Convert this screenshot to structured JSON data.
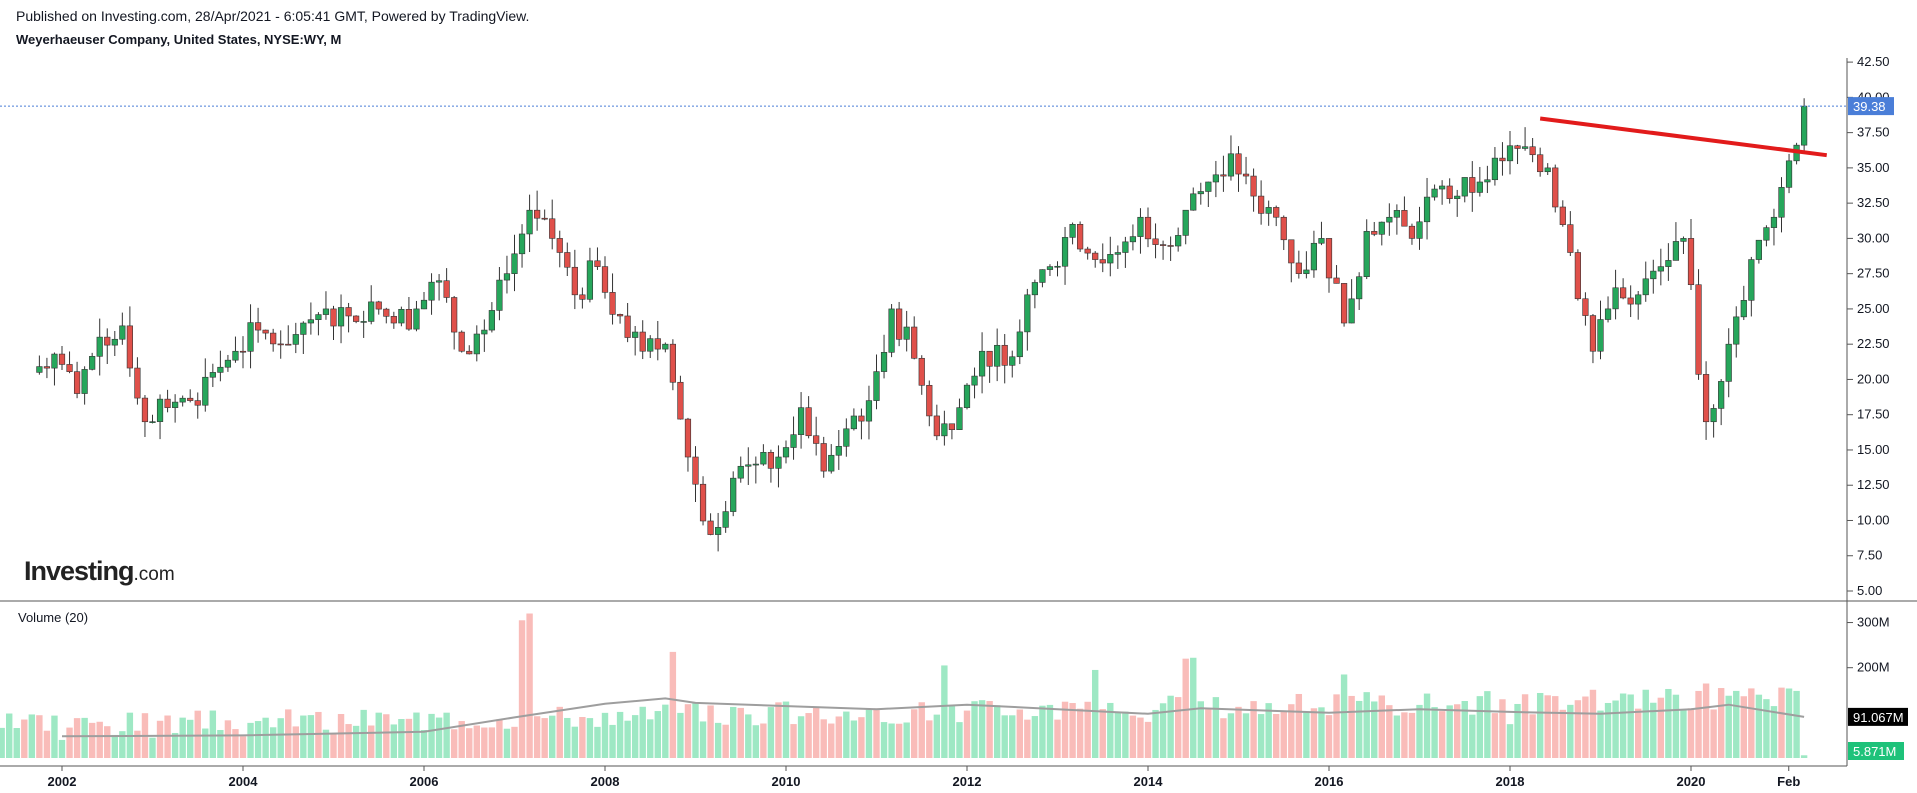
{
  "header": {
    "published": "Published on Investing.com, 28/Apr/2021 - 6:05:41 GMT, Powered by TradingView.",
    "symbol": "Weyerhaeuser Company, United States, NYSE:WY, M"
  },
  "logo": {
    "main": "Investing",
    "suffix": ".com"
  },
  "volume_panel": {
    "title": "Volume (20)"
  },
  "colors": {
    "up": "#26a65b",
    "down": "#e0504a",
    "vol_up": "#9ee8c4",
    "vol_down": "#f9bcb9",
    "ma": "#9e9e9e",
    "trendline": "#e21b1b",
    "price_tag": "#4a7ed8"
  },
  "chart_data": [
    {
      "type": "candlestick",
      "interval": "monthly",
      "y_axis_ticks": [
        "5.00",
        "7.50",
        "10.00",
        "12.50",
        "15.00",
        "17.50",
        "20.00",
        "22.50",
        "25.00",
        "27.50",
        "30.00",
        "32.50",
        "35.00",
        "37.50",
        "40.00",
        "42.50"
      ],
      "ylim": [
        5,
        43.5
      ],
      "x_tick_labels": [
        "2002",
        "2004",
        "2006",
        "2008",
        "2010",
        "2012",
        "2014",
        "2016",
        "2018",
        "2020",
        "Feb"
      ],
      "last_price": "39.38",
      "series": [
        {
          "x": "2001-09",
          "c": 20.5
        },
        {
          "x": "2001-12",
          "c": 21.8
        },
        {
          "x": "2002-03",
          "c": 19.0
        },
        {
          "x": "2002-06",
          "c": 23.0
        },
        {
          "x": "2002-09",
          "c": 23.8
        },
        {
          "x": "2002-12",
          "c": 17.0
        },
        {
          "x": "2003-03",
          "c": 18.0
        },
        {
          "x": "2003-06",
          "c": 18.5
        },
        {
          "x": "2003-09",
          "c": 20.5
        },
        {
          "x": "2003-12",
          "c": 22.0
        },
        {
          "x": "2004-03",
          "c": 23.5
        },
        {
          "x": "2004-06",
          "c": 22.5
        },
        {
          "x": "2004-09",
          "c": 24.0
        },
        {
          "x": "2004-12",
          "c": 25.0
        },
        {
          "x": "2005-03",
          "c": 24.5
        },
        {
          "x": "2005-06",
          "c": 25.5
        },
        {
          "x": "2005-09",
          "c": 24.0
        },
        {
          "x": "2005-12",
          "c": 25.0
        },
        {
          "x": "2006-03",
          "c": 27.0
        },
        {
          "x": "2006-06",
          "c": 22.0
        },
        {
          "x": "2006-09",
          "c": 23.5
        },
        {
          "x": "2006-12",
          "c": 27.5
        },
        {
          "x": "2007-03",
          "c": 32.0
        },
        {
          "x": "2007-06",
          "c": 30.0
        },
        {
          "x": "2007-09",
          "c": 26.0
        },
        {
          "x": "2007-12",
          "c": 28.0
        },
        {
          "x": "2008-03",
          "c": 24.5
        },
        {
          "x": "2008-06",
          "c": 22.0
        },
        {
          "x": "2008-09",
          "c": 22.5
        },
        {
          "x": "2008-12",
          "c": 14.5
        },
        {
          "x": "2009-03",
          "c": 9.0
        },
        {
          "x": "2009-06",
          "c": 13.0
        },
        {
          "x": "2009-09",
          "c": 14.0
        },
        {
          "x": "2009-12",
          "c": 14.5
        },
        {
          "x": "2010-03",
          "c": 18.0
        },
        {
          "x": "2010-06",
          "c": 13.5
        },
        {
          "x": "2010-09",
          "c": 16.5
        },
        {
          "x": "2010-12",
          "c": 18.5
        },
        {
          "x": "2011-03",
          "c": 25.0
        },
        {
          "x": "2011-06",
          "c": 21.5
        },
        {
          "x": "2011-09",
          "c": 16.0
        },
        {
          "x": "2011-12",
          "c": 18.0
        },
        {
          "x": "2012-03",
          "c": 22.0
        },
        {
          "x": "2012-06",
          "c": 21.0
        },
        {
          "x": "2012-09",
          "c": 26.0
        },
        {
          "x": "2012-12",
          "c": 28.0
        },
        {
          "x": "2013-03",
          "c": 31.0
        },
        {
          "x": "2013-06",
          "c": 28.5
        },
        {
          "x": "2013-09",
          "c": 29.0
        },
        {
          "x": "2013-12",
          "c": 31.5
        },
        {
          "x": "2014-03",
          "c": 29.5
        },
        {
          "x": "2014-06",
          "c": 32.0
        },
        {
          "x": "2014-09",
          "c": 34.0
        },
        {
          "x": "2014-12",
          "c": 36.0
        },
        {
          "x": "2015-03",
          "c": 33.0
        },
        {
          "x": "2015-06",
          "c": 31.5
        },
        {
          "x": "2015-09",
          "c": 27.5
        },
        {
          "x": "2015-12",
          "c": 30.0
        },
        {
          "x": "2016-03",
          "c": 24.0
        },
        {
          "x": "2016-06",
          "c": 30.5
        },
        {
          "x": "2016-09",
          "c": 31.5
        },
        {
          "x": "2016-12",
          "c": 30.0
        },
        {
          "x": "2017-03",
          "c": 33.5
        },
        {
          "x": "2017-06",
          "c": 33.0
        },
        {
          "x": "2017-09",
          "c": 34.0
        },
        {
          "x": "2017-12",
          "c": 35.5
        },
        {
          "x": "2018-03",
          "c": 36.5
        },
        {
          "x": "2018-06",
          "c": 35.0
        },
        {
          "x": "2018-09",
          "c": 29.0
        },
        {
          "x": "2018-12",
          "c": 22.0
        },
        {
          "x": "2019-03",
          "c": 26.5
        },
        {
          "x": "2019-06",
          "c": 26.0
        },
        {
          "x": "2019-09",
          "c": 28.0
        },
        {
          "x": "2019-12",
          "c": 30.0
        },
        {
          "x": "2020-03",
          "c": 17.0
        },
        {
          "x": "2020-06",
          "c": 22.5
        },
        {
          "x": "2020-09",
          "c": 28.5
        },
        {
          "x": "2020-12",
          "c": 31.5
        },
        {
          "x": "2021-02",
          "c": 35.5
        },
        {
          "x": "2021-04",
          "c": 39.38
        }
      ],
      "trendline": [
        {
          "x": "2018-05",
          "y": 38.5
        },
        {
          "x": "2021-07",
          "y": 35.9
        }
      ]
    },
    {
      "type": "bar",
      "title": "Volume (20)",
      "y_axis_ticks": [
        "200M",
        "300M"
      ],
      "ylim": [
        0,
        330
      ],
      "current_volume_ma": "91.067M",
      "current_volume": "5.871M",
      "volumes_millions": [
        {
          "x": "2002",
          "v": 40
        },
        {
          "x": "2003",
          "v": 45
        },
        {
          "x": "2004",
          "v": 48
        },
        {
          "x": "2005",
          "v": 55
        },
        {
          "x": "2006",
          "v": 62
        },
        {
          "x": "2007-02",
          "v": 305
        },
        {
          "x": "2007-03",
          "v": 320
        },
        {
          "x": "2008",
          "v": 100
        },
        {
          "x": "2008-10",
          "v": 235
        },
        {
          "x": "2010",
          "v": 125
        },
        {
          "x": "2011",
          "v": 110
        },
        {
          "x": "2011-10",
          "v": 205
        },
        {
          "x": "2012",
          "v": 105
        },
        {
          "x": "2013",
          "v": 85
        },
        {
          "x": "2013-06",
          "v": 195
        },
        {
          "x": "2014",
          "v": 80
        },
        {
          "x": "2014-06",
          "v": 220
        },
        {
          "x": "2014-07",
          "v": 222
        },
        {
          "x": "2016",
          "v": 95
        },
        {
          "x": "2016-03",
          "v": 185
        },
        {
          "x": "2018",
          "v": 75
        },
        {
          "x": "2019",
          "v": 105
        },
        {
          "x": "2020",
          "v": 110
        },
        {
          "x": "2020-03",
          "v": 165
        },
        {
          "x": "2021-04",
          "v": 6
        }
      ],
      "ma_values_millions": [
        {
          "x": "2002",
          "v": 48
        },
        {
          "x": "2004",
          "v": 50
        },
        {
          "x": "2006",
          "v": 58
        },
        {
          "x": "2007",
          "v": 90
        },
        {
          "x": "2008",
          "v": 120
        },
        {
          "x": "2008-09",
          "v": 132
        },
        {
          "x": "2009",
          "v": 122
        },
        {
          "x": "2011",
          "v": 108
        },
        {
          "x": "2012",
          "v": 118
        },
        {
          "x": "2013",
          "v": 108
        },
        {
          "x": "2014",
          "v": 98
        },
        {
          "x": "2014-08",
          "v": 110
        },
        {
          "x": "2016",
          "v": 100
        },
        {
          "x": "2017",
          "v": 108
        },
        {
          "x": "2018",
          "v": 102
        },
        {
          "x": "2019",
          "v": 98
        },
        {
          "x": "2020",
          "v": 108
        },
        {
          "x": "2020-06",
          "v": 118
        },
        {
          "x": "2021-04",
          "v": 91.067
        }
      ]
    }
  ]
}
